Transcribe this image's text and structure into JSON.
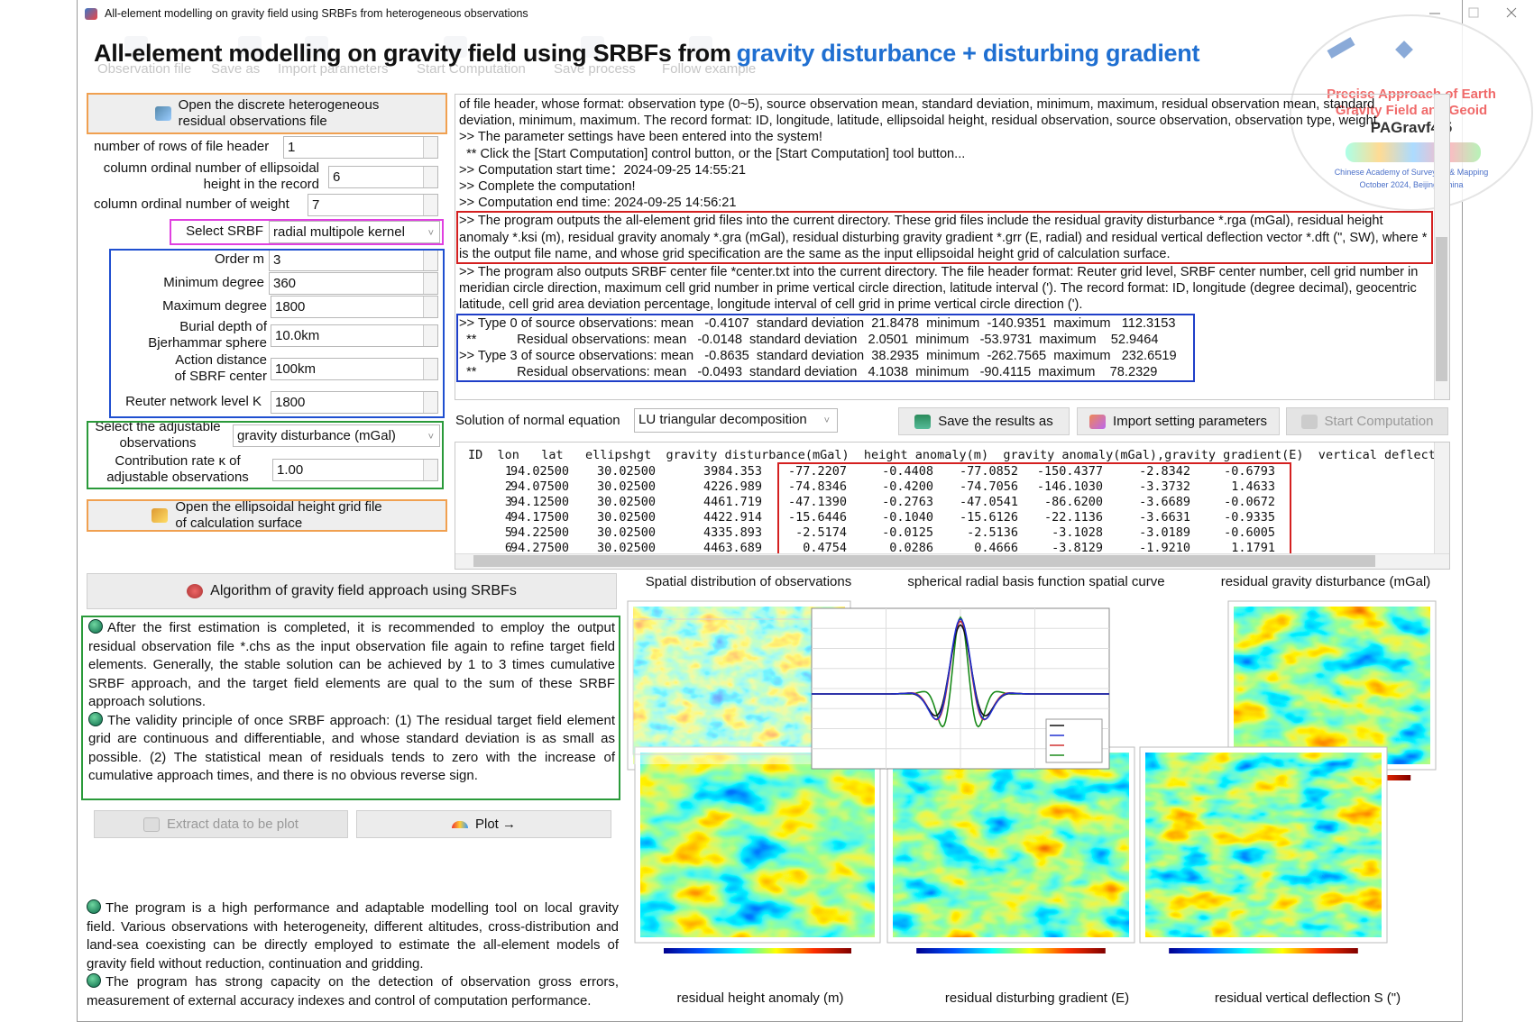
{
  "window": {
    "title": "All-element modelling on gravity field using SRBFs from heterogeneous observations"
  },
  "header": {
    "title": "All-element modelling on gravity field using SRBFs from",
    "highlight": "gravity disturbance + disturbing gradient"
  },
  "toolbar": [
    "Observation file",
    "Save as",
    "Import parameters",
    "Start Computation",
    "Save process",
    "Follow example"
  ],
  "logo": {
    "line1": "Precise Approach of Earth",
    "line2": "Gravity Field and Geoid",
    "version": "PAGravf4.5",
    "org": "Chinese Academy of Surveying & Mapping",
    "date": "October 2024, Beijing, China"
  },
  "left_panel": {
    "open_observations": [
      "Open the discrete heterogeneous",
      "residual observations file"
    ],
    "fields": [
      {
        "label": [
          "number of rows of file header"
        ],
        "value": "1"
      },
      {
        "label": [
          "column ordinal number of ellipsoidal",
          "height in the record"
        ],
        "value": "6"
      },
      {
        "label": [
          "column ordinal number of weight"
        ],
        "value": "7"
      },
      {
        "label": [
          "Select SRBF"
        ],
        "value": "radial multipole kernel"
      },
      {
        "label": [
          "Order m"
        ],
        "value": "3"
      },
      {
        "label": [
          "Minimum degree"
        ],
        "value": "360"
      },
      {
        "label": [
          "Maximum degree"
        ],
        "value": "1800"
      },
      {
        "label": [
          "Burial depth of",
          "Bjerhammar sphere"
        ],
        "value": "10.0km"
      },
      {
        "label": [
          "Action distance",
          "of SBRF center"
        ],
        "value": "100km"
      },
      {
        "label": [
          "Reuter network level K"
        ],
        "value": "1800"
      },
      {
        "label": [
          "Select the adjustable",
          "observations"
        ],
        "value": "gravity disturbance (mGal)"
      },
      {
        "label": [
          "Contribution rate κ of",
          "adjustable observations"
        ],
        "value": "1.00"
      }
    ],
    "open_grid": [
      "Open the ellipsoidal height grid file",
      "of calculation surface"
    ],
    "algorithm": "Algorithm of gravity field approach using SRBFs",
    "notes": [
      "After the first estimation is completed, it is recommended to employ the output residual observation file *.chs as the input observation file again to refine target field elements. Generally, the stable solution can be achieved by 1 to 3 times cumulative SRBF approach, and the target field elements are qual to the sum of these SRBF approach solutions.",
      "The validity principle of once SRBF approach: (1) The residual target field element grid are continuous and differentiable, and whose standard deviation is as small as possible. (2) The statistical mean of residuals tends to zero with the increase of cumulative approach times, and there is no obvious reverse sign."
    ],
    "extract": "Extract data to be plot",
    "plot": "Plot →",
    "about": [
      "The program is a high performance and adaptable modelling tool on local gravity field. Various observations with heterogeneity, different altitudes, cross-distribution and land-sea coexisting can be directly employed to estimate the all-element models of gravity field without reduction, continuation and gridding.",
      "The program has strong capacity on the detection of observation gross errors, measurement of external accuracy indexes and control of computation performance."
    ]
  },
  "log": {
    "lines": [
      "of file header, whose format: observation type (0~5), source observation mean, standard deviation, minimum, maximum, residual observation mean, standard deviation, minimum, maximum. The record format: ID, longitude, latitude, ellipsoidal height, residual observation, source observation, observation type, weight.",
      ">> The parameter settings have been entered into the system!",
      "  ** Click the [Start Computation] control button, or the [Start Computation] tool button...",
      ">> Computation start time：2024-09-25 14:55:21",
      ">> Complete the computation!",
      ">> Computation end time: 2024-09-25 14:56:21"
    ],
    "outputs": ">> The program outputs the all-element grid files into the current directory. These grid files include the residual gravity disturbance *.rga (mGal), residual height anomaly *.ksi (m), residual gravity anomaly *.gra (mGal), residual disturbing gravity gradient *.grr (E, radial) and residual vertical deflection vector *.dft (\", SW), where * is the output file name, and whose grid specification are the same as the input ellipsoidal height grid of calculation surface.",
    "centers": ">> The program also outputs SRBF center file *center.txt into the current directory. The file header format: Reuter grid level, SRBF center number, cell grid number in meridian circle direction, maximum cell grid number in prime vertical circle direction, latitude interval ('). The record format: ID, longitude (degree decimal), geocentric latitude, cell grid area deviation percentage, longitude interval of cell grid in prime vertical circle direction (').",
    "stats": [
      ">> Type 0 of source observations: mean   -0.4107  standard deviation  21.8478  minimum  -140.9351  maximum   112.3153",
      "  **           Residual observations: mean   -0.0148  standard deviation   2.0501  minimum   -53.9731  maximum    52.9464",
      ">> Type 3 of source observations: mean   -0.8635  standard deviation  38.2935  minimum  -262.7565  maximum   232.6519",
      "  **           Residual observations: mean   -0.0493  standard deviation   4.1038  minimum   -90.4115  maximum    78.2329"
    ]
  },
  "solution": {
    "label": "Solution of normal equation",
    "value": "LU triangular decomposition",
    "save": "Save the results as",
    "import": "Import setting parameters",
    "start": "Start Computation"
  },
  "table": {
    "header": "ID  lon   lat   ellipshgt  gravity disturbance(mGal)  height anomaly(m)  gravity anomaly(mGal),gravity gradient(E)  vertical deflecti",
    "rows": [
      [
        "1",
        "94.02500",
        "30.02500",
        "3984.353",
        "-77.2207",
        "-0.4408",
        "-77.0852",
        "-150.4377",
        "-2.8342",
        "-0.6793"
      ],
      [
        "2",
        "94.07500",
        "30.02500",
        "4226.989",
        "-74.8346",
        "-0.4200",
        "-74.7056",
        "-146.1030",
        "-3.3732",
        "1.4633"
      ],
      [
        "3",
        "94.12500",
        "30.02500",
        "4461.719",
        "-47.1390",
        "-0.2763",
        "-47.0541",
        "-86.6200",
        "-3.6689",
        "-0.0672"
      ],
      [
        "4",
        "94.17500",
        "30.02500",
        "4422.914",
        "-15.6446",
        "-0.1040",
        "-15.6126",
        "-22.1136",
        "-3.6631",
        "-0.9335"
      ],
      [
        "5",
        "94.22500",
        "30.02500",
        "4335.893",
        "-2.5174",
        "-0.0125",
        "-2.5136",
        "-3.1028",
        "-3.0189",
        "-0.6005"
      ],
      [
        "6",
        "94.27500",
        "30.02500",
        "4463.689",
        "0.4754",
        "0.0286",
        "0.4666",
        "-3.8129",
        "-1.9210",
        "1.1791"
      ]
    ]
  },
  "figures": [
    "Spatial distribution of observations",
    "spherical radial basis function spatial curve",
    "residual gravity disturbance (mGal)",
    "residual height anomaly (m)",
    "residual disturbing gradient (E)",
    "residual vertical deflection S (\")"
  ]
}
